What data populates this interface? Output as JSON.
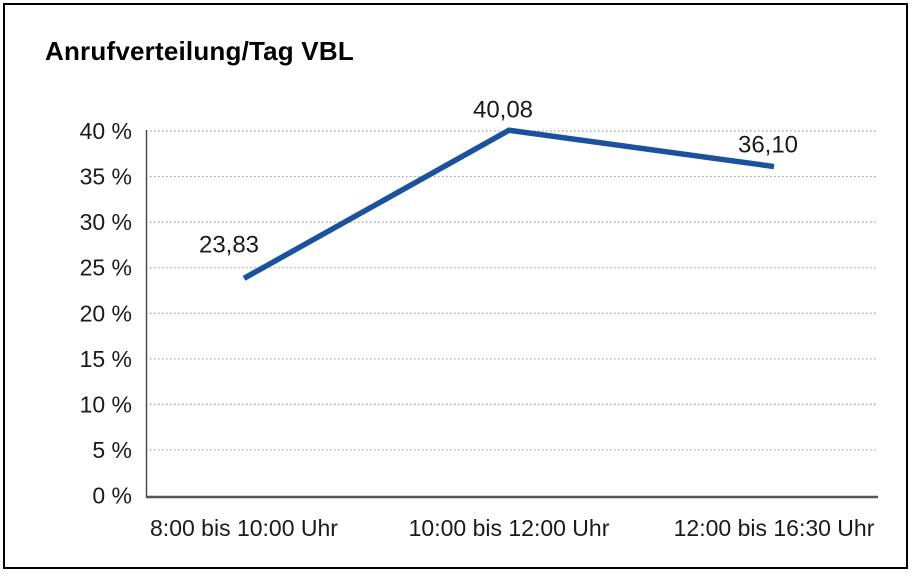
{
  "page": {
    "background_color": "#ffffff",
    "border_color": "#000000"
  },
  "chart_data": {
    "type": "line",
    "title": "Anrufverteilung/Tag VBL",
    "categories": [
      "8:00 bis 10:00 Uhr",
      "10:00 bis 12:00 Uhr",
      "12:00 bis 16:30 Uhr"
    ],
    "values": [
      23.83,
      40.08,
      36.1
    ],
    "point_labels": [
      "23,83",
      "40,08",
      "36,10"
    ],
    "xlabel": "",
    "ylabel": "",
    "ylim": [
      0,
      40
    ],
    "ytick_step": 5,
    "ytick_labels": [
      "0 %",
      "5 %",
      "10 %",
      "15 %",
      "20 %",
      "25 %",
      "30 %",
      "35 %",
      "40 %"
    ],
    "grid": "horizontal-dotted",
    "legend": "none",
    "colors": {
      "line": "#1B529E",
      "gridline": "#9C9C9C",
      "y_axis": "#444444",
      "x_axis": "#555555",
      "text": "#1a1a1a",
      "title": "#000000"
    }
  }
}
